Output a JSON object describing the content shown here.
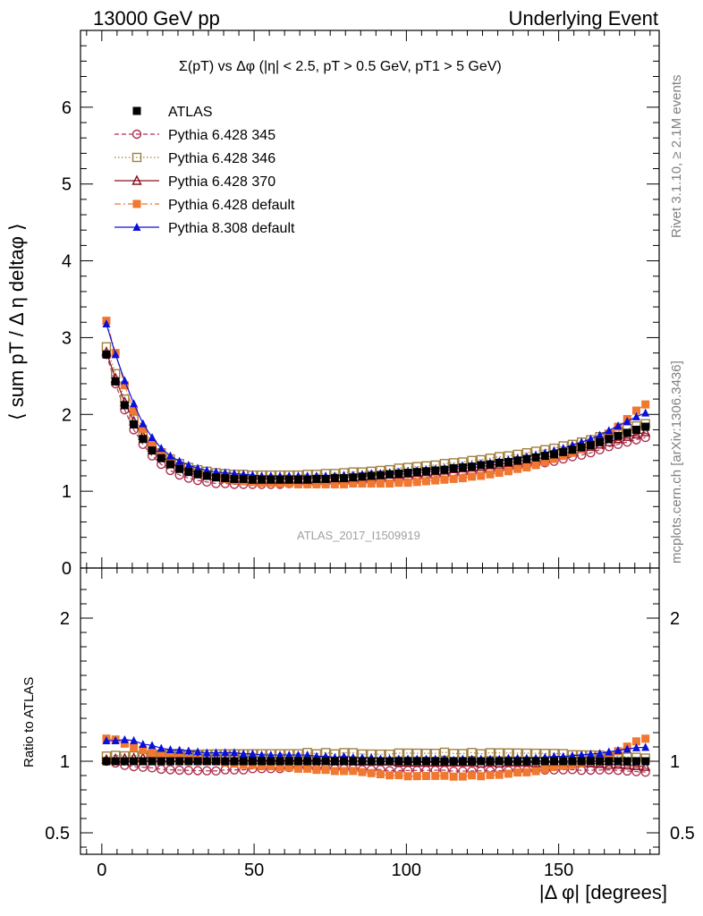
{
  "header": {
    "left": "13000 GeV pp",
    "right": "Underlying Event"
  },
  "side_text": {
    "rivet": "Rivet 3.1.10, ≥ 2.1M events",
    "mcplots": "mcplots.cern.ch [arXiv:1306.3436]"
  },
  "analysis_id": "ATLAS_2017_I1509919",
  "chart_data": [
    {
      "type": "scatter",
      "title": "Σ(pT) vs Δφ (|η| < 2.5, pT > 0.5 GeV, pT1 > 5 GeV)",
      "ylabel": "⟨ sum pT / Δ η deltaφ ⟩",
      "xlim": [
        -7,
        183
      ],
      "ylim": [
        0,
        7
      ],
      "yticks": [
        0,
        1,
        2,
        3,
        4,
        5,
        6
      ],
      "legend_position": "top-left",
      "x": [
        1.5,
        4.5,
        7.5,
        10.5,
        13.5,
        16.5,
        19.5,
        22.5,
        25.5,
        28.5,
        31.5,
        34.5,
        37.5,
        40.5,
        43.5,
        46.5,
        49.5,
        52.5,
        55.5,
        58.5,
        61.5,
        64.5,
        67.5,
        70.5,
        73.5,
        76.5,
        79.5,
        82.5,
        85.5,
        88.5,
        91.5,
        94.5,
        97.5,
        100.5,
        103.5,
        106.5,
        109.5,
        112.5,
        115.5,
        118.5,
        121.5,
        124.5,
        127.5,
        130.5,
        133.5,
        136.5,
        139.5,
        142.5,
        145.5,
        148.5,
        151.5,
        154.5,
        157.5,
        160.5,
        163.5,
        166.5,
        169.5,
        172.5,
        175.5,
        178.5
      ],
      "series": [
        {
          "name": "ATLAS",
          "color": "#000000",
          "marker": "square-filled",
          "values": [
            2.78,
            2.43,
            2.12,
            1.87,
            1.68,
            1.53,
            1.43,
            1.35,
            1.29,
            1.25,
            1.22,
            1.2,
            1.18,
            1.17,
            1.16,
            1.16,
            1.15,
            1.15,
            1.15,
            1.15,
            1.15,
            1.15,
            1.15,
            1.16,
            1.16,
            1.17,
            1.17,
            1.18,
            1.19,
            1.2,
            1.21,
            1.22,
            1.23,
            1.24,
            1.25,
            1.26,
            1.27,
            1.28,
            1.3,
            1.31,
            1.32,
            1.34,
            1.35,
            1.37,
            1.38,
            1.4,
            1.42,
            1.44,
            1.46,
            1.48,
            1.51,
            1.54,
            1.57,
            1.6,
            1.64,
            1.68,
            1.72,
            1.76,
            1.8,
            1.84
          ]
        },
        {
          "name": "Pythia 6.428 345",
          "color": "#b03050",
          "marker": "circle-open",
          "line": "dashed",
          "values": [
            2.78,
            2.4,
            2.06,
            1.8,
            1.61,
            1.46,
            1.35,
            1.27,
            1.21,
            1.17,
            1.14,
            1.12,
            1.1,
            1.1,
            1.09,
            1.09,
            1.09,
            1.09,
            1.09,
            1.09,
            1.1,
            1.1,
            1.1,
            1.1,
            1.11,
            1.11,
            1.11,
            1.12,
            1.12,
            1.13,
            1.14,
            1.14,
            1.15,
            1.16,
            1.17,
            1.18,
            1.19,
            1.2,
            1.21,
            1.22,
            1.23,
            1.25,
            1.26,
            1.28,
            1.29,
            1.31,
            1.33,
            1.35,
            1.37,
            1.39,
            1.42,
            1.45,
            1.47,
            1.5,
            1.54,
            1.58,
            1.61,
            1.64,
            1.67,
            1.7
          ]
        },
        {
          "name": "Pythia 6.428 346",
          "color": "#a08040",
          "marker": "square-open",
          "line": "dotted",
          "values": [
            2.88,
            2.53,
            2.2,
            1.94,
            1.75,
            1.6,
            1.5,
            1.42,
            1.36,
            1.31,
            1.28,
            1.26,
            1.24,
            1.23,
            1.22,
            1.22,
            1.21,
            1.21,
            1.21,
            1.21,
            1.21,
            1.21,
            1.22,
            1.22,
            1.23,
            1.23,
            1.24,
            1.25,
            1.25,
            1.26,
            1.27,
            1.28,
            1.3,
            1.31,
            1.32,
            1.33,
            1.34,
            1.36,
            1.37,
            1.38,
            1.4,
            1.41,
            1.43,
            1.45,
            1.46,
            1.48,
            1.5,
            1.52,
            1.54,
            1.56,
            1.59,
            1.61,
            1.64,
            1.67,
            1.71,
            1.74,
            1.78,
            1.81,
            1.85,
            1.88
          ]
        },
        {
          "name": "Pythia 6.428 370",
          "color": "#8b1020",
          "marker": "triangle-open",
          "line": "solid",
          "values": [
            2.81,
            2.47,
            2.16,
            1.91,
            1.72,
            1.57,
            1.46,
            1.38,
            1.32,
            1.27,
            1.24,
            1.21,
            1.2,
            1.18,
            1.17,
            1.17,
            1.16,
            1.16,
            1.16,
            1.16,
            1.16,
            1.16,
            1.16,
            1.17,
            1.17,
            1.17,
            1.18,
            1.18,
            1.19,
            1.2,
            1.21,
            1.22,
            1.22,
            1.23,
            1.24,
            1.25,
            1.26,
            1.27,
            1.29,
            1.3,
            1.31,
            1.32,
            1.34,
            1.35,
            1.37,
            1.39,
            1.41,
            1.42,
            1.44,
            1.47,
            1.49,
            1.52,
            1.55,
            1.58,
            1.61,
            1.64,
            1.68,
            1.71,
            1.74,
            1.77
          ]
        },
        {
          "name": "Pythia 6.428 default",
          "color": "#f07830",
          "marker": "square-filled",
          "line": "dashdot",
          "values": [
            3.22,
            2.8,
            2.38,
            2.05,
            1.81,
            1.62,
            1.49,
            1.4,
            1.33,
            1.27,
            1.23,
            1.2,
            1.18,
            1.16,
            1.14,
            1.13,
            1.12,
            1.11,
            1.11,
            1.1,
            1.1,
            1.09,
            1.09,
            1.09,
            1.09,
            1.09,
            1.09,
            1.1,
            1.1,
            1.1,
            1.1,
            1.1,
            1.11,
            1.11,
            1.12,
            1.13,
            1.14,
            1.15,
            1.16,
            1.17,
            1.19,
            1.2,
            1.22,
            1.24,
            1.26,
            1.29,
            1.31,
            1.34,
            1.38,
            1.42,
            1.46,
            1.5,
            1.55,
            1.6,
            1.67,
            1.75,
            1.84,
            1.94,
            2.05,
            2.13
          ]
        },
        {
          "name": "Pythia 8.308 default",
          "color": "#0a10d8",
          "marker": "triangle-filled",
          "line": "solid",
          "values": [
            3.18,
            2.78,
            2.44,
            2.14,
            1.88,
            1.7,
            1.56,
            1.46,
            1.39,
            1.34,
            1.3,
            1.27,
            1.25,
            1.24,
            1.23,
            1.22,
            1.21,
            1.2,
            1.2,
            1.2,
            1.2,
            1.2,
            1.2,
            1.2,
            1.2,
            1.2,
            1.21,
            1.21,
            1.22,
            1.23,
            1.23,
            1.24,
            1.25,
            1.26,
            1.27,
            1.28,
            1.29,
            1.3,
            1.31,
            1.33,
            1.34,
            1.36,
            1.37,
            1.39,
            1.41,
            1.43,
            1.45,
            1.47,
            1.5,
            1.53,
            1.56,
            1.6,
            1.64,
            1.68,
            1.73,
            1.79,
            1.85,
            1.91,
            1.97,
            2.02
          ]
        }
      ]
    },
    {
      "type": "scatter",
      "ylabel": "Ratio to ATLAS",
      "xlabel": "|Δ φ| [degrees]",
      "xlim": [
        -7,
        183
      ],
      "xticks": [
        0,
        50,
        100,
        150
      ],
      "ylim": [
        0.35,
        2.35
      ],
      "yticks": [
        0.5,
        1,
        2
      ],
      "reference_line": 1
    }
  ]
}
